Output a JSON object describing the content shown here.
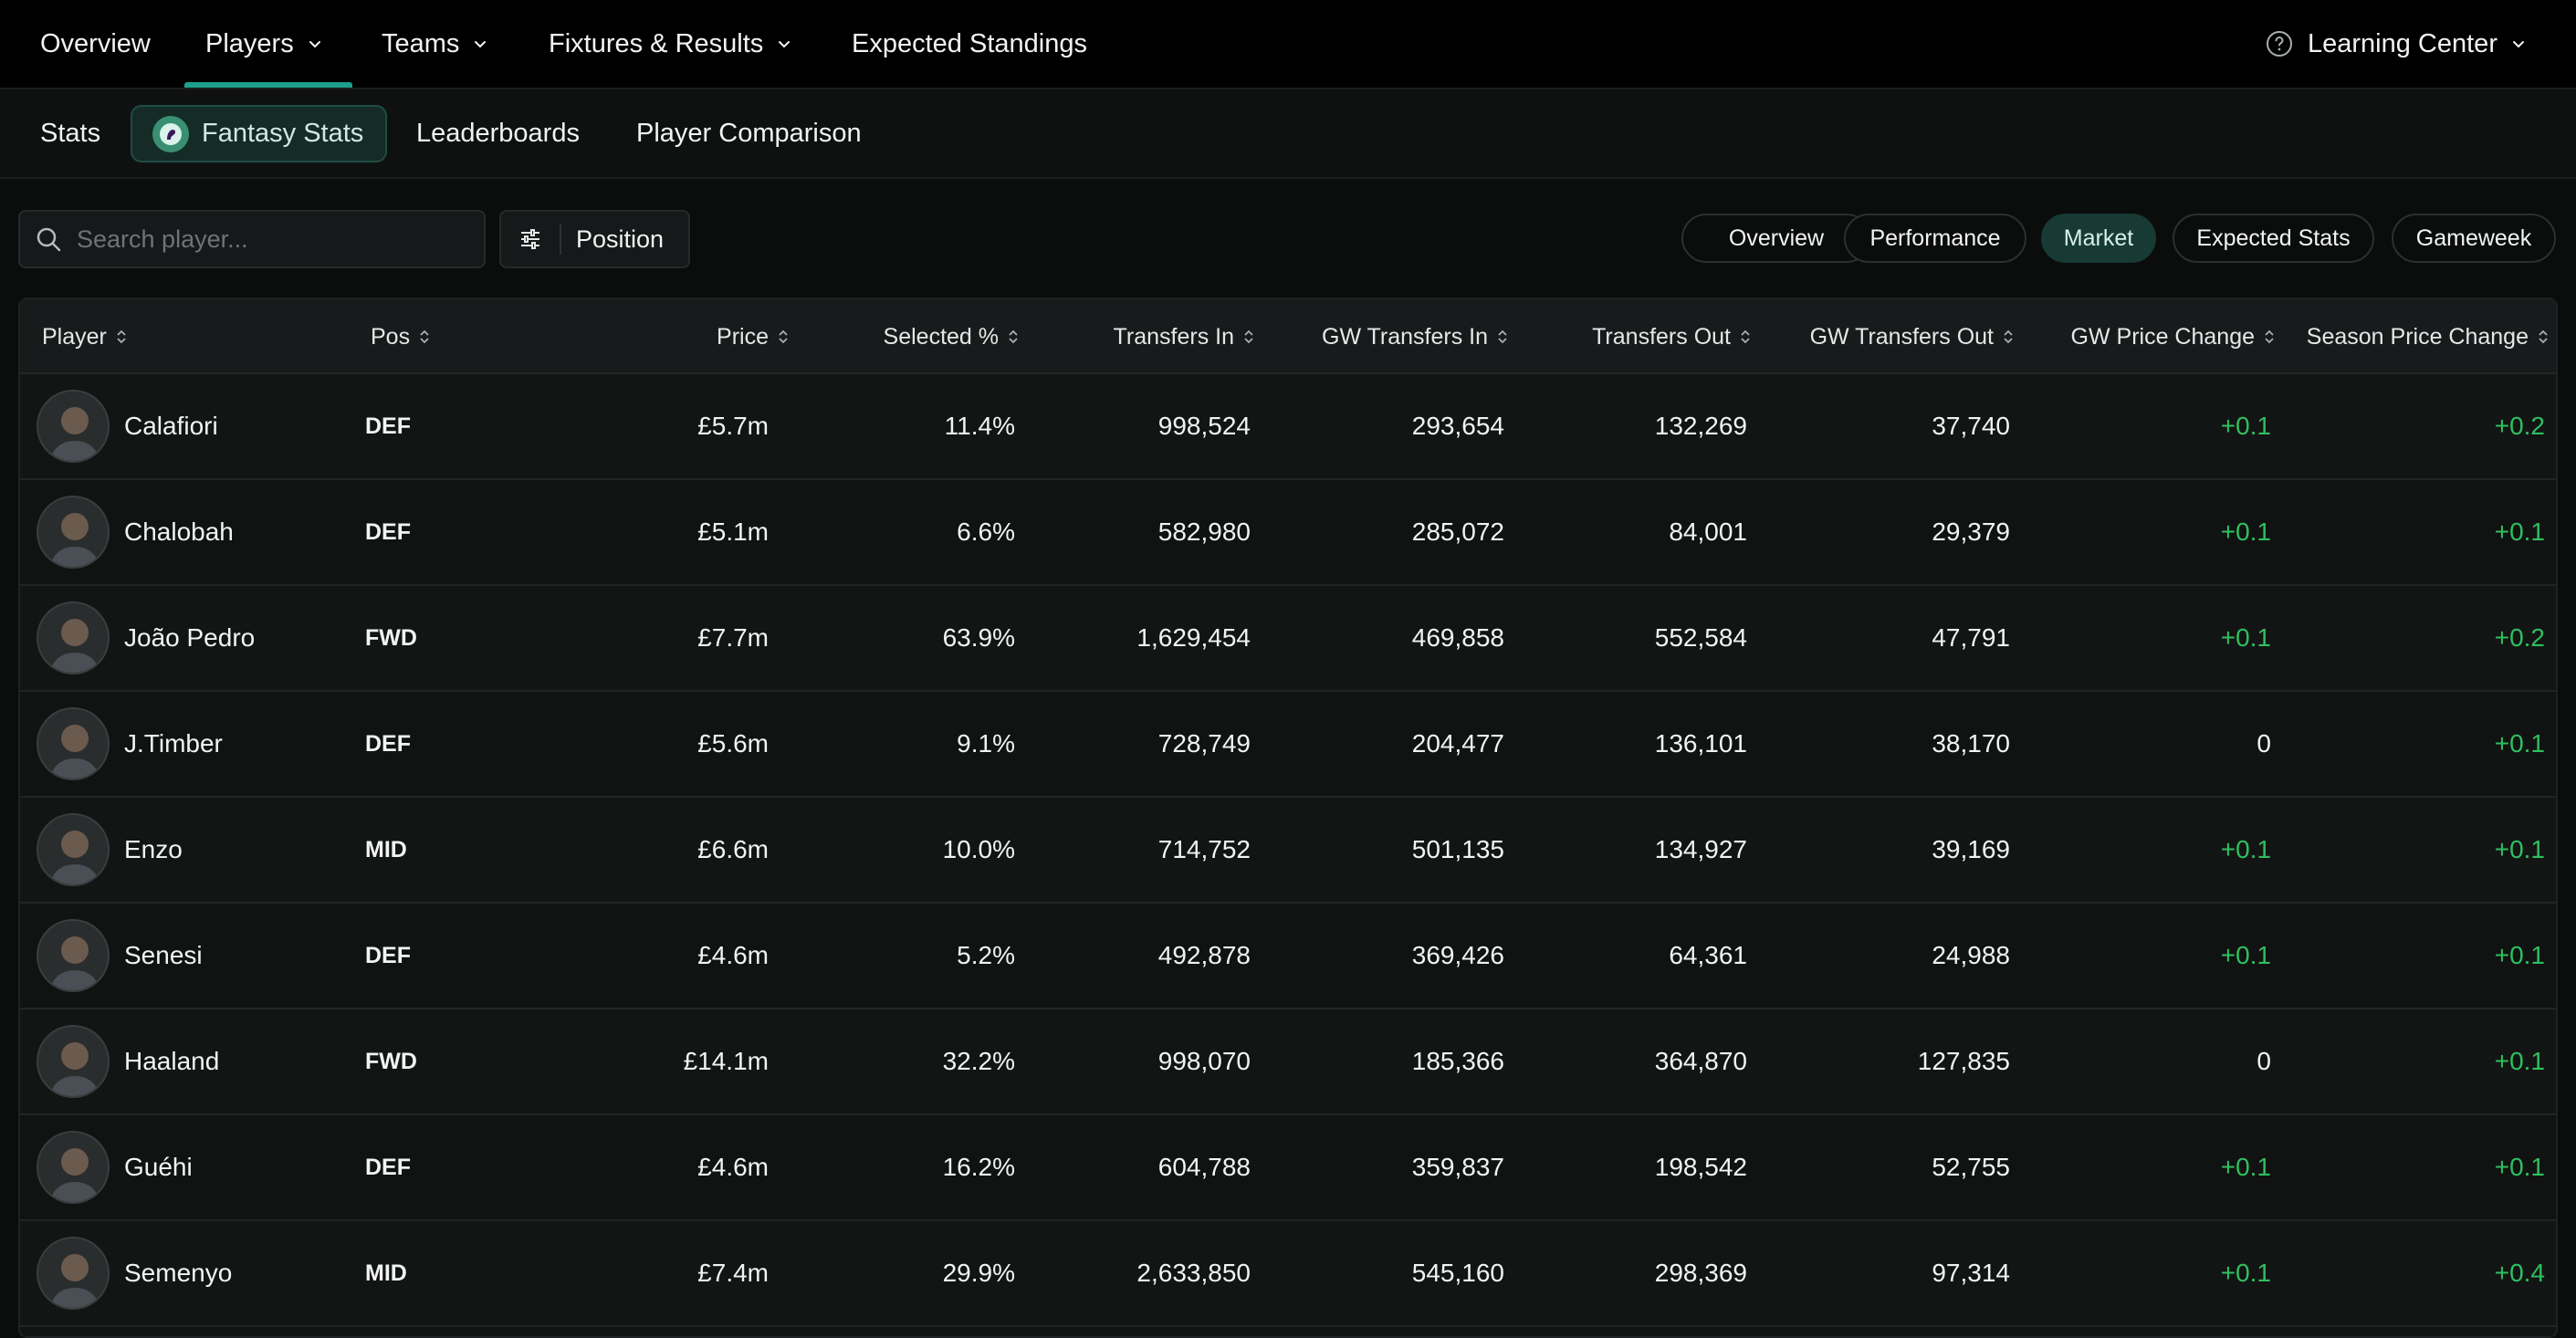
{
  "topnav": {
    "items": [
      {
        "label": "Overview"
      },
      {
        "label": "Players"
      },
      {
        "label": "Teams"
      },
      {
        "label": "Fixtures & Results"
      },
      {
        "label": "Expected Standings"
      }
    ],
    "learning_center": "Learning Center"
  },
  "subnav": {
    "items": [
      {
        "label": "Stats"
      },
      {
        "label": "Fantasy Stats"
      },
      {
        "label": "Leaderboards"
      },
      {
        "label": "Player Comparison"
      }
    ]
  },
  "toolbar": {
    "search_placeholder": "Search player...",
    "position_label": "Position",
    "view_tabs": [
      {
        "label": "Overview"
      },
      {
        "label": "Performance"
      },
      {
        "label": "Market"
      },
      {
        "label": "Expected Stats"
      },
      {
        "label": "Gameweek"
      }
    ]
  },
  "colors": {
    "accent": "#1f9e8c",
    "positive": "#2fbf5f",
    "background": "#0b0c0c"
  },
  "table": {
    "headers": [
      "Player",
      "Pos",
      "Price",
      "Selected %",
      "Transfers In",
      "GW Transfers In",
      "Transfers Out",
      "GW Transfers Out",
      "GW Price Change",
      "Season Price Change"
    ],
    "rows": [
      {
        "player": "Calafiori",
        "pos": "DEF",
        "price": "£5.7m",
        "selected": "11.4%",
        "tin": "998,524",
        "gwtin": "293,654",
        "tout": "132,269",
        "gwtout": "37,740",
        "gwpc": "+0.1",
        "spc": "+0.2"
      },
      {
        "player": "Chalobah",
        "pos": "DEF",
        "price": "£5.1m",
        "selected": "6.6%",
        "tin": "582,980",
        "gwtin": "285,072",
        "tout": "84,001",
        "gwtout": "29,379",
        "gwpc": "+0.1",
        "spc": "+0.1"
      },
      {
        "player": "João Pedro",
        "pos": "FWD",
        "price": "£7.7m",
        "selected": "63.9%",
        "tin": "1,629,454",
        "gwtin": "469,858",
        "tout": "552,584",
        "gwtout": "47,791",
        "gwpc": "+0.1",
        "spc": "+0.2"
      },
      {
        "player": "J.Timber",
        "pos": "DEF",
        "price": "£5.6m",
        "selected": "9.1%",
        "tin": "728,749",
        "gwtin": "204,477",
        "tout": "136,101",
        "gwtout": "38,170",
        "gwpc": "0",
        "spc": "+0.1"
      },
      {
        "player": "Enzo",
        "pos": "MID",
        "price": "£6.6m",
        "selected": "10.0%",
        "tin": "714,752",
        "gwtin": "501,135",
        "tout": "134,927",
        "gwtout": "39,169",
        "gwpc": "+0.1",
        "spc": "+0.1"
      },
      {
        "player": "Senesi",
        "pos": "DEF",
        "price": "£4.6m",
        "selected": "5.2%",
        "tin": "492,878",
        "gwtin": "369,426",
        "tout": "64,361",
        "gwtout": "24,988",
        "gwpc": "+0.1",
        "spc": "+0.1"
      },
      {
        "player": "Haaland",
        "pos": "FWD",
        "price": "£14.1m",
        "selected": "32.2%",
        "tin": "998,070",
        "gwtin": "185,366",
        "tout": "364,870",
        "gwtout": "127,835",
        "gwpc": "0",
        "spc": "+0.1"
      },
      {
        "player": "Guéhi",
        "pos": "DEF",
        "price": "£4.6m",
        "selected": "16.2%",
        "tin": "604,788",
        "gwtin": "359,837",
        "tout": "198,542",
        "gwtout": "52,755",
        "gwpc": "+0.1",
        "spc": "+0.1"
      },
      {
        "player": "Semenyo",
        "pos": "MID",
        "price": "£7.4m",
        "selected": "29.9%",
        "tin": "2,633,850",
        "gwtin": "545,160",
        "tout": "298,369",
        "gwtout": "97,314",
        "gwpc": "+0.1",
        "spc": "+0.4"
      }
    ]
  }
}
